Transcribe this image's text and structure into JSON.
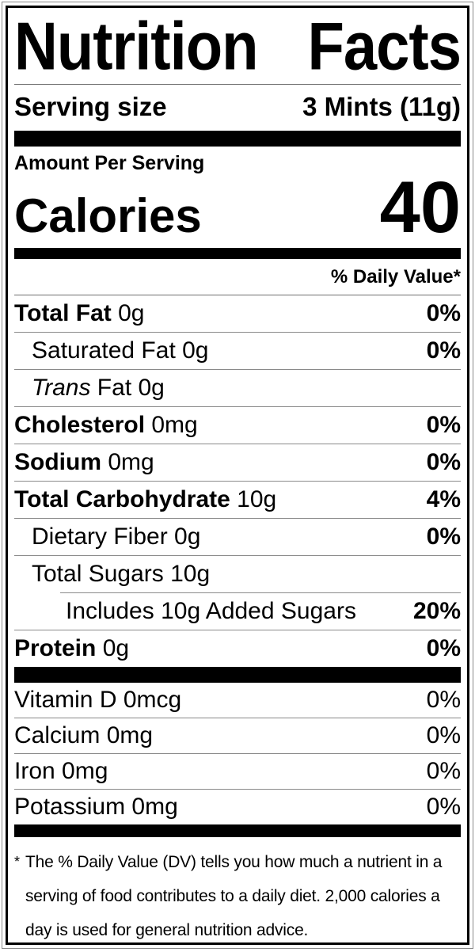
{
  "title": {
    "word1": "Nutrition",
    "word2": "Facts"
  },
  "serving": {
    "label": "Serving size",
    "value": "3 Mints (11g)"
  },
  "calories": {
    "amount_per_serving": "Amount Per Serving",
    "label": "Calories",
    "value": "40"
  },
  "daily_value_header": "% Daily Value*",
  "nutrients": [
    {
      "parts": [
        {
          "t": "Total Fat",
          "b": true
        },
        {
          "t": " 0g"
        }
      ],
      "dv": "0%",
      "indent": 0
    },
    {
      "parts": [
        {
          "t": "Saturated Fat 0g"
        }
      ],
      "dv": "0%",
      "indent": 1
    },
    {
      "parts": [
        {
          "t": "Trans",
          "i": true
        },
        {
          "t": " Fat 0g"
        }
      ],
      "dv": "",
      "indent": 1
    },
    {
      "parts": [
        {
          "t": "Cholesterol",
          "b": true
        },
        {
          "t": " 0mg"
        }
      ],
      "dv": "0%",
      "indent": 0
    },
    {
      "parts": [
        {
          "t": "Sodium",
          "b": true
        },
        {
          "t": " 0mg"
        }
      ],
      "dv": "0%",
      "indent": 0
    },
    {
      "parts": [
        {
          "t": "Total Carbohydrate",
          "b": true
        },
        {
          "t": " 10g"
        }
      ],
      "dv": "4%",
      "indent": 0
    },
    {
      "parts": [
        {
          "t": "Dietary Fiber 0g"
        }
      ],
      "dv": "0%",
      "indent": 1
    },
    {
      "parts": [
        {
          "t": "Total Sugars 10g"
        }
      ],
      "dv": "",
      "indent": 1
    },
    {
      "parts": [
        {
          "t": "Includes 10g Added Sugars"
        }
      ],
      "dv": "20%",
      "indent": 2,
      "indent_rule": true
    },
    {
      "parts": [
        {
          "t": "Protein",
          "b": true
        },
        {
          "t": " 0g"
        }
      ],
      "dv": "0%",
      "indent": 0
    }
  ],
  "vitamins": [
    {
      "name": "Vitamin D 0mcg",
      "dv": "0%"
    },
    {
      "name": "Calcium 0mg",
      "dv": "0%"
    },
    {
      "name": "Iron 0mg",
      "dv": "0%"
    },
    {
      "name": "Potassium 0mg",
      "dv": "0%"
    }
  ],
  "footnote": {
    "marker": "*",
    "text": "The % Daily Value (DV) tells you how much a nutrient in a serving of food contributes to a daily diet. 2,000 calories a day is used for general nutrition advice."
  },
  "colors": {
    "text": "#000000",
    "bar": "#000000",
    "background": "#ffffff",
    "hairline": "#8a8a8a"
  }
}
